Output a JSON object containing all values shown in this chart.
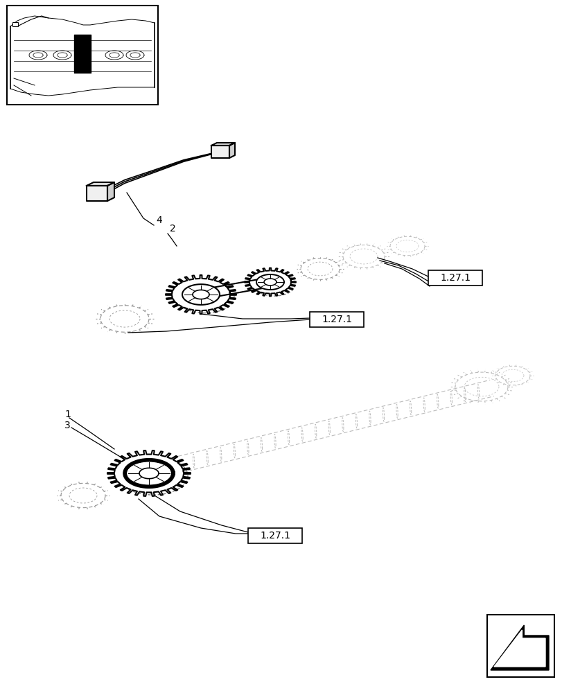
{
  "bg_color": "#ffffff",
  "line_color": "#000000",
  "light_gray": "#bbbbbb",
  "medium_gray": "#999999",
  "cable_color": "#333333",
  "figsize": [
    8.12,
    10.0
  ],
  "dpi": 100
}
